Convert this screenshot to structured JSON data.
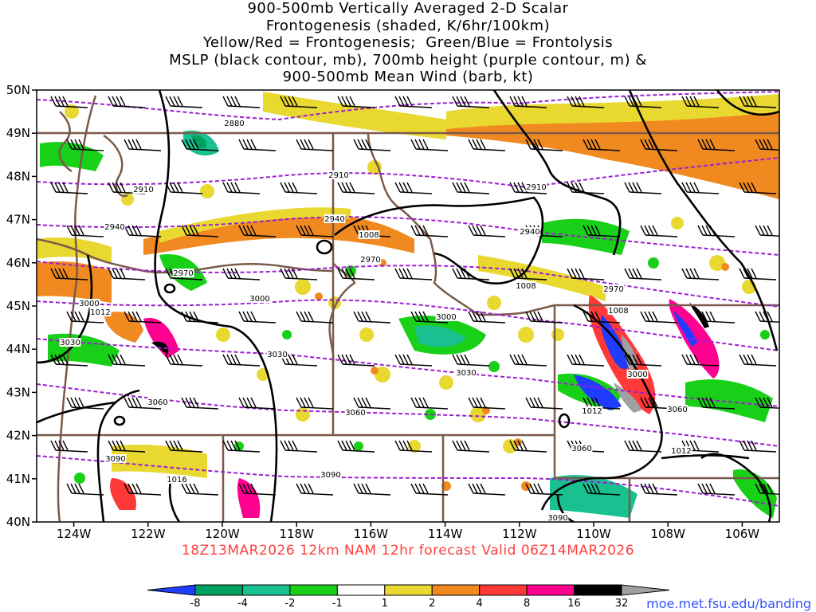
{
  "title_lines": [
    "900-500mb Vertically Averaged 2-D Scalar",
    "Frontogenesis (shaded, K/6hr/100km)",
    "Yellow/Red = Frontogenesis;  Green/Blue = Frontolysis",
    "MSLP (black contour, mb), 700mb height (purple contour, m) &",
    "900-500mb Mean Wind (barb, kt)"
  ],
  "map": {
    "lon_range": [
      -125,
      -105
    ],
    "lat_range": [
      40,
      50
    ],
    "lon_tick_labels": [
      "124W",
      "122W",
      "120W",
      "118W",
      "116W",
      "114W",
      "112W",
      "110W",
      "108W",
      "106W"
    ],
    "lat_tick_labels": [
      "40N",
      "41N",
      "42N",
      "43N",
      "44N",
      "45N",
      "46N",
      "47N",
      "48N",
      "49N",
      "50N"
    ],
    "height_contour_labels": [
      "2880",
      "2910",
      "2910",
      "2910",
      "2940",
      "2940",
      "2940",
      "2970",
      "2970",
      "2970",
      "3000",
      "3000",
      "3000",
      "3000",
      "3030",
      "3030",
      "3030",
      "3060",
      "3060",
      "3060",
      "3060",
      "3090",
      "3090",
      "3090"
    ],
    "pressure_contour_labels": [
      "1008",
      "1008",
      "1008",
      "1012",
      "1012",
      "1012",
      "1016"
    ],
    "colors": {
      "pressure": "#000000",
      "height": "#9b1fd1",
      "borders": "#7a5a4a",
      "barbs": "#000000"
    }
  },
  "colorbar": {
    "ticks": [
      "-8",
      "-4",
      "-2",
      "-1",
      "1",
      "2",
      "4",
      "8",
      "16",
      "32"
    ],
    "colors": [
      "#1f3cff",
      "#00a060",
      "#19c090",
      "#18d018",
      "#ffffff",
      "#e8d830",
      "#f08a20",
      "#ff3838",
      "#ff0090",
      "#000000",
      "#a0a0a0"
    ]
  },
  "footer": "18Z13MAR2026 12km NAM 12hr forecast Valid 06Z14MAR2026",
  "credit": "moe.met.fsu.edu/banding"
}
